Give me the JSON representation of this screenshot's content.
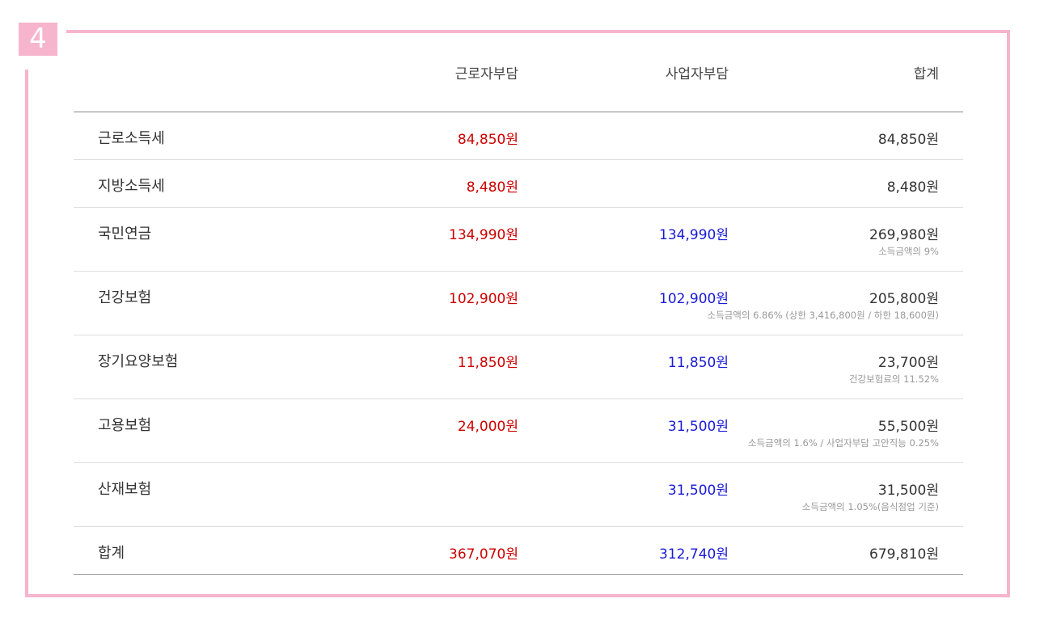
{
  "section_number": "4",
  "colors": {
    "accent": "#f6b5cc",
    "employee": "#cc0000",
    "employer": "#1a1ad6",
    "total": "#333333"
  },
  "header": {
    "col_employee": "근로자부담",
    "col_employer": "사업자부담",
    "col_total": "합계"
  },
  "rows": [
    {
      "label": "근로소득세",
      "employee": "84,850원",
      "employer": "",
      "total": "84,850원",
      "note": ""
    },
    {
      "label": "지방소득세",
      "employee": "8,480원",
      "employer": "",
      "total": "8,480원",
      "note": ""
    },
    {
      "label": "국민연금",
      "employee": "134,990원",
      "employer": "134,990원",
      "total": "269,980원",
      "note": "소득금액의 9%"
    },
    {
      "label": "건강보험",
      "employee": "102,900원",
      "employer": "102,900원",
      "total": "205,800원",
      "note": "소득금액의 6.86% (상한 3,416,800원 / 하한 18,600원)"
    },
    {
      "label": "장기요양보험",
      "employee": "11,850원",
      "employer": "11,850원",
      "total": "23,700원",
      "note": "건강보험료의 11.52%"
    },
    {
      "label": "고용보험",
      "employee": "24,000원",
      "employer": "31,500원",
      "total": "55,500원",
      "note": "소득금액의 1.6% / 사업자부담 고안직능 0.25%"
    },
    {
      "label": "산재보험",
      "employee": "",
      "employer": "31,500원",
      "total": "31,500원",
      "note": "소득금액의 1.05%(음식점업 기준)"
    },
    {
      "label": "합계",
      "employee": "367,070원",
      "employer": "312,740원",
      "total": "679,810원",
      "note": ""
    }
  ]
}
